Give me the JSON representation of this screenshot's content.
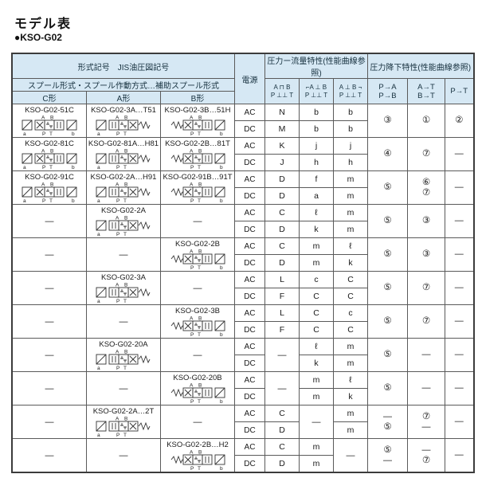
{
  "page": {
    "title": "モデル表",
    "model_bullet": "●KSO-G02"
  },
  "colors": {
    "header_bg": "#d6e8f4",
    "border": "#3c3c3c",
    "grid": "#5a5a5a"
  },
  "header": {
    "left_title": "形式記号　JIS油圧図記号",
    "left_subtitle": "スプール形式・スプール作動方式…補助スプール形式",
    "spool_cols": [
      "C形",
      "A形",
      "B形"
    ],
    "power": "電源",
    "power_vals": [
      "AC",
      "DC"
    ],
    "flow_title": "圧力ー流量特性(性能曲線参照)",
    "drop_title": "圧力降下特性(性能曲線参照)",
    "sym_cols": [
      {
        "top": "A ⊓ B",
        "bottom": "P ⊥⊥ T"
      },
      {
        "top": "⌐A ⊥ B",
        "bottom": "P ⊥⊥ T"
      },
      {
        "top": "A ⊥ B ¬",
        "bottom": "P ⊥⊥ T"
      }
    ],
    "drop_cols": [
      [
        "P→A",
        "P→B"
      ],
      [
        "A→T",
        "B→T"
      ],
      [
        "P→T"
      ]
    ]
  },
  "ports": {
    "top_left": "A",
    "top_right": "B",
    "bottom_left": "P",
    "bottom_right": "T",
    "sol_a": "a",
    "sol_b": "b"
  },
  "rows": [
    {
      "c": {
        "model": "KSO-G02-51C",
        "type": "C"
      },
      "a": {
        "model": "KSO-G02-3A…T51",
        "type": "A"
      },
      "b": {
        "model": "KSO-G02-3B…51H",
        "type": "B"
      },
      "ac": [
        "N",
        "b",
        "b"
      ],
      "dc": [
        "M",
        "b",
        "b"
      ],
      "pa": [
        "③"
      ],
      "at": [
        "①"
      ],
      "pt": [
        "②"
      ]
    },
    {
      "c": {
        "model": "KSO-G02-81C",
        "type": "C"
      },
      "a": {
        "model": "KSO-G02-81A…H81",
        "type": "A"
      },
      "b": {
        "model": "KSO-G02-2B…81T",
        "type": "B"
      },
      "ac": [
        "K",
        "j",
        "j"
      ],
      "dc": [
        "J",
        "h",
        "h"
      ],
      "pa": [
        "④"
      ],
      "at": [
        "⑦"
      ],
      "pt": [
        "—"
      ]
    },
    {
      "c": {
        "model": "KSO-G02-91C",
        "type": "C"
      },
      "a": {
        "model": "KSO-G02-2A…H91",
        "type": "A"
      },
      "b": {
        "model": "KSO-G02-91B…91T",
        "type": "B"
      },
      "ac": [
        "D",
        "f",
        "m"
      ],
      "dc": [
        "D",
        "a",
        "m"
      ],
      "pa": [
        "⑤"
      ],
      "at": [
        "⑥",
        "⑦"
      ],
      "pt": [
        "—"
      ]
    },
    {
      "c": null,
      "a": {
        "model": "KSO-G02-2A",
        "type": "A"
      },
      "b": null,
      "ac": [
        "C",
        "ℓ",
        "m"
      ],
      "dc": [
        "D",
        "k",
        "m"
      ],
      "pa": [
        "⑤"
      ],
      "at": [
        "③"
      ],
      "pt": [
        "—"
      ]
    },
    {
      "c": null,
      "a": null,
      "b": {
        "model": "KSO-G02-2B",
        "type": "B"
      },
      "ac": [
        "C",
        "m",
        "ℓ"
      ],
      "dc": [
        "D",
        "m",
        "k"
      ],
      "pa": [
        "⑤"
      ],
      "at": [
        "③"
      ],
      "pt": [
        "—"
      ]
    },
    {
      "c": null,
      "a": {
        "model": "KSO-G02-3A",
        "type": "A"
      },
      "b": null,
      "ac": [
        "L",
        "c",
        "C"
      ],
      "dc": [
        "F",
        "C",
        "C"
      ],
      "pa": [
        "⑤"
      ],
      "at": [
        "⑦"
      ],
      "pt": [
        "—"
      ]
    },
    {
      "c": null,
      "a": null,
      "b": {
        "model": "KSO-G02-3B",
        "type": "B"
      },
      "ac": [
        "L",
        "C",
        "c"
      ],
      "dc": [
        "F",
        "C",
        "C"
      ],
      "pa": [
        "⑤"
      ],
      "at": [
        "⑦"
      ],
      "pt": [
        "—"
      ]
    },
    {
      "c": null,
      "a": {
        "model": "KSO-G02-20A",
        "type": "A"
      },
      "b": null,
      "ac": [
        null,
        "ℓ",
        "m"
      ],
      "dc": [
        null,
        "k",
        "m"
      ],
      "pa": [
        "⑤"
      ],
      "at": [
        "—"
      ],
      "pt": [
        "—"
      ]
    },
    {
      "c": null,
      "a": null,
      "b": {
        "model": "KSO-G02-20B",
        "type": "B"
      },
      "ac": [
        null,
        "m",
        "ℓ"
      ],
      "dc": [
        null,
        "m",
        "k"
      ],
      "pa": [
        "⑤"
      ],
      "at": [
        "—"
      ],
      "pt": [
        "—"
      ]
    },
    {
      "c": null,
      "a": {
        "model": "KSO-G02-2A…2T",
        "type": "A"
      },
      "b": null,
      "ac": [
        "C",
        null,
        "m"
      ],
      "dc": [
        "D",
        null,
        "m"
      ],
      "pa": [
        "—",
        "⑤"
      ],
      "at": [
        "⑦",
        "—"
      ],
      "pt": [
        "—"
      ]
    },
    {
      "c": null,
      "a": null,
      "b": {
        "model": "KSO-G02-2B…H2",
        "type": "B"
      },
      "ac": [
        "C",
        "m",
        null
      ],
      "dc": [
        "D",
        "m",
        null
      ],
      "pa": [
        "⑤",
        "—"
      ],
      "at": [
        "—",
        "⑦"
      ],
      "pt": [
        "—"
      ]
    }
  ]
}
